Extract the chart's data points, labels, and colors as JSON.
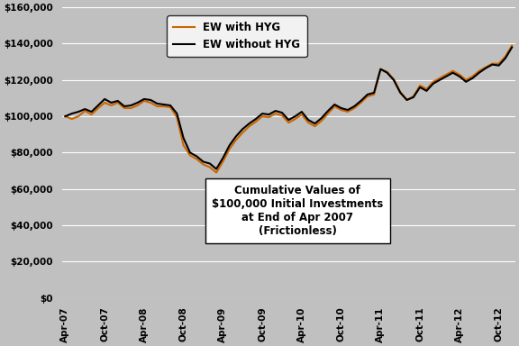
{
  "background_color": "#C0C0C0",
  "plot_bg_color": "#C0C0C0",
  "legend_label_1": "EW without HYG",
  "legend_label_2": "EW with HYG",
  "color_1": "#000000",
  "color_2": "#CC6600",
  "annotation": "Cumulative Values of\n$100,000 Initial Investments\nat End of Apr 2007\n(Frictionless)",
  "ylim": [
    0,
    160000
  ],
  "yticks": [
    0,
    20000,
    40000,
    60000,
    80000,
    100000,
    120000,
    140000,
    160000
  ],
  "xtick_labels": [
    "Apr-07",
    "Oct-07",
    "Apr-08",
    "Oct-08",
    "Apr-09",
    "Oct-09",
    "Apr-10",
    "Oct-10",
    "Apr-11",
    "Oct-11",
    "Apr-12",
    "Oct-12"
  ],
  "line_width": 1.5,
  "values_no_hyg": [
    100000,
    101500,
    102500,
    104000,
    102500,
    106000,
    109500,
    107500,
    108500,
    105500,
    106000,
    107500,
    109500,
    109000,
    107000,
    106500,
    106000,
    101500,
    88000,
    80000,
    78000,
    75000,
    74000,
    71000,
    77000,
    84000,
    89000,
    93000,
    96000,
    98500,
    101500,
    101000,
    103000,
    102000,
    98000,
    100000,
    102500,
    98000,
    96000,
    99000,
    103000,
    106500,
    104500,
    103500,
    105500,
    108500,
    112000,
    113000,
    126000,
    124000,
    120000,
    113000,
    109000,
    110500,
    116000,
    114000,
    118000,
    120000,
    122000,
    124000,
    122000,
    119000,
    121000,
    124000,
    126500,
    128500,
    128000,
    132000,
    138000
  ],
  "values_with_hyg": [
    100000,
    98500,
    100000,
    103000,
    101000,
    104500,
    107500,
    106000,
    107500,
    104500,
    104500,
    106000,
    108500,
    107500,
    105500,
    105500,
    105000,
    99500,
    84000,
    78500,
    76500,
    73500,
    72000,
    69000,
    75000,
    82000,
    87000,
    91000,
    94500,
    97000,
    100000,
    99500,
    101500,
    100500,
    96500,
    98500,
    101000,
    96500,
    94500,
    97500,
    101500,
    105500,
    103500,
    102500,
    104500,
    107500,
    111000,
    112000,
    126000,
    124500,
    120500,
    113500,
    109000,
    111000,
    117000,
    115000,
    119000,
    121000,
    123000,
    125000,
    123000,
    120000,
    122000,
    125000,
    127000,
    129000,
    129000,
    133000,
    139000
  ]
}
